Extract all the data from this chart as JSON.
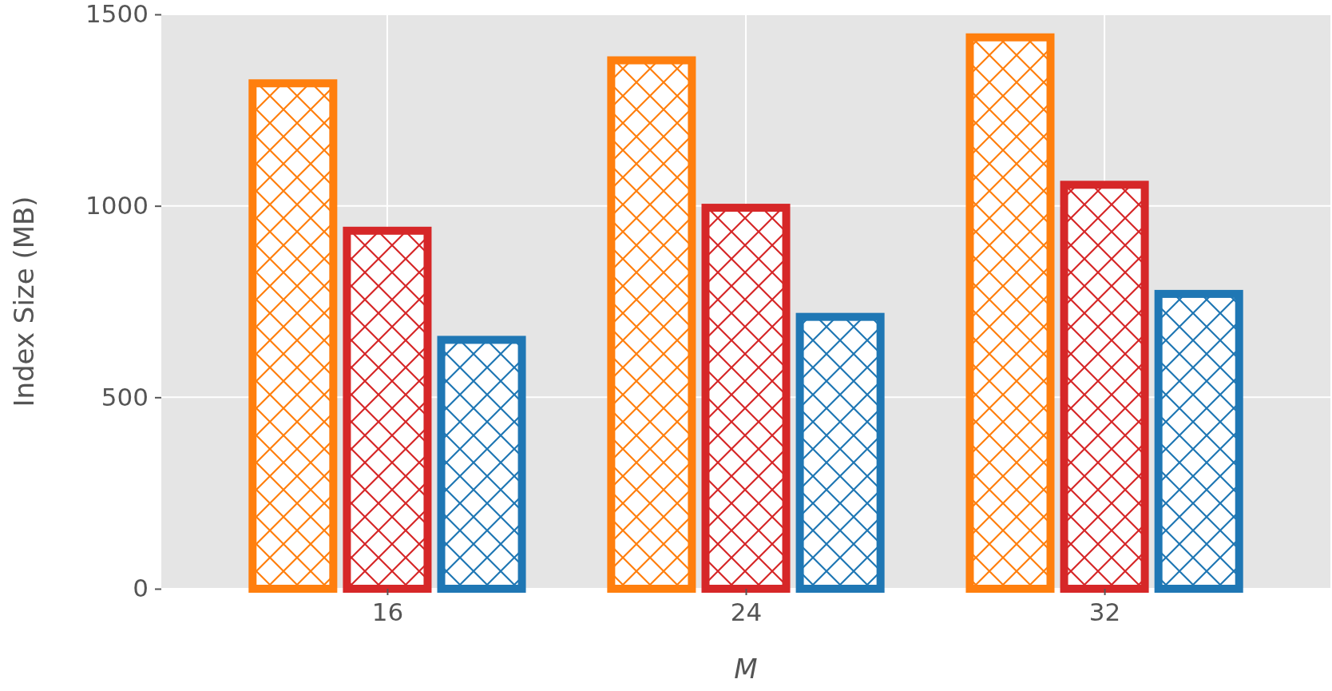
{
  "chart_data": {
    "type": "bar",
    "xlabel": "M",
    "ylabel": "Index Size (MB)",
    "categories": [
      "16",
      "24",
      "32"
    ],
    "series": [
      {
        "color": "#ff7f0e",
        "values": [
          1320,
          1380,
          1440
        ]
      },
      {
        "color": "#d62728",
        "values": [
          935,
          995,
          1055
        ]
      },
      {
        "color": "#1f77b4",
        "values": [
          650,
          710,
          770
        ]
      }
    ],
    "ylim": [
      0,
      1500
    ],
    "yticks": [
      0,
      500,
      1000,
      1500
    ],
    "grid": true
  }
}
